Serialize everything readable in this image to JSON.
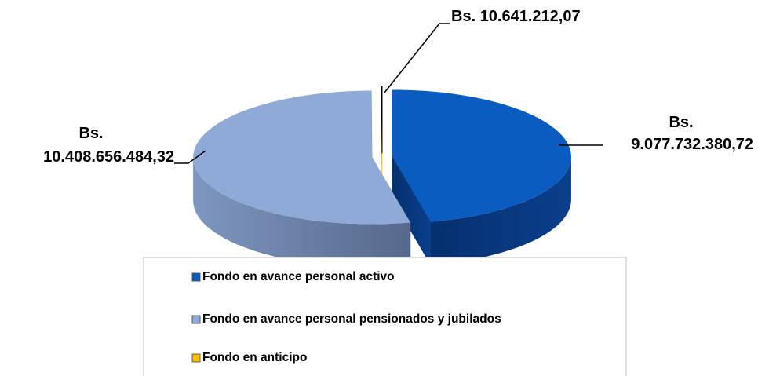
{
  "chart_data": {
    "type": "pie",
    "categories": [
      "Fondo en avance personal activo",
      "Fondo en avance personal pensionados y jubilados",
      "Fondo en anticipo"
    ],
    "values": [
      9077732380.72,
      10408656484.32,
      10641212.07
    ],
    "value_labels": [
      "Bs. 9.077.732.380,72",
      "Bs. 10.408.656.484,32",
      "Bs. 10.641.212,07"
    ],
    "colors": [
      "#0a5cc0",
      "#8faad6",
      "#ffc000"
    ],
    "legend": "bottom"
  }
}
